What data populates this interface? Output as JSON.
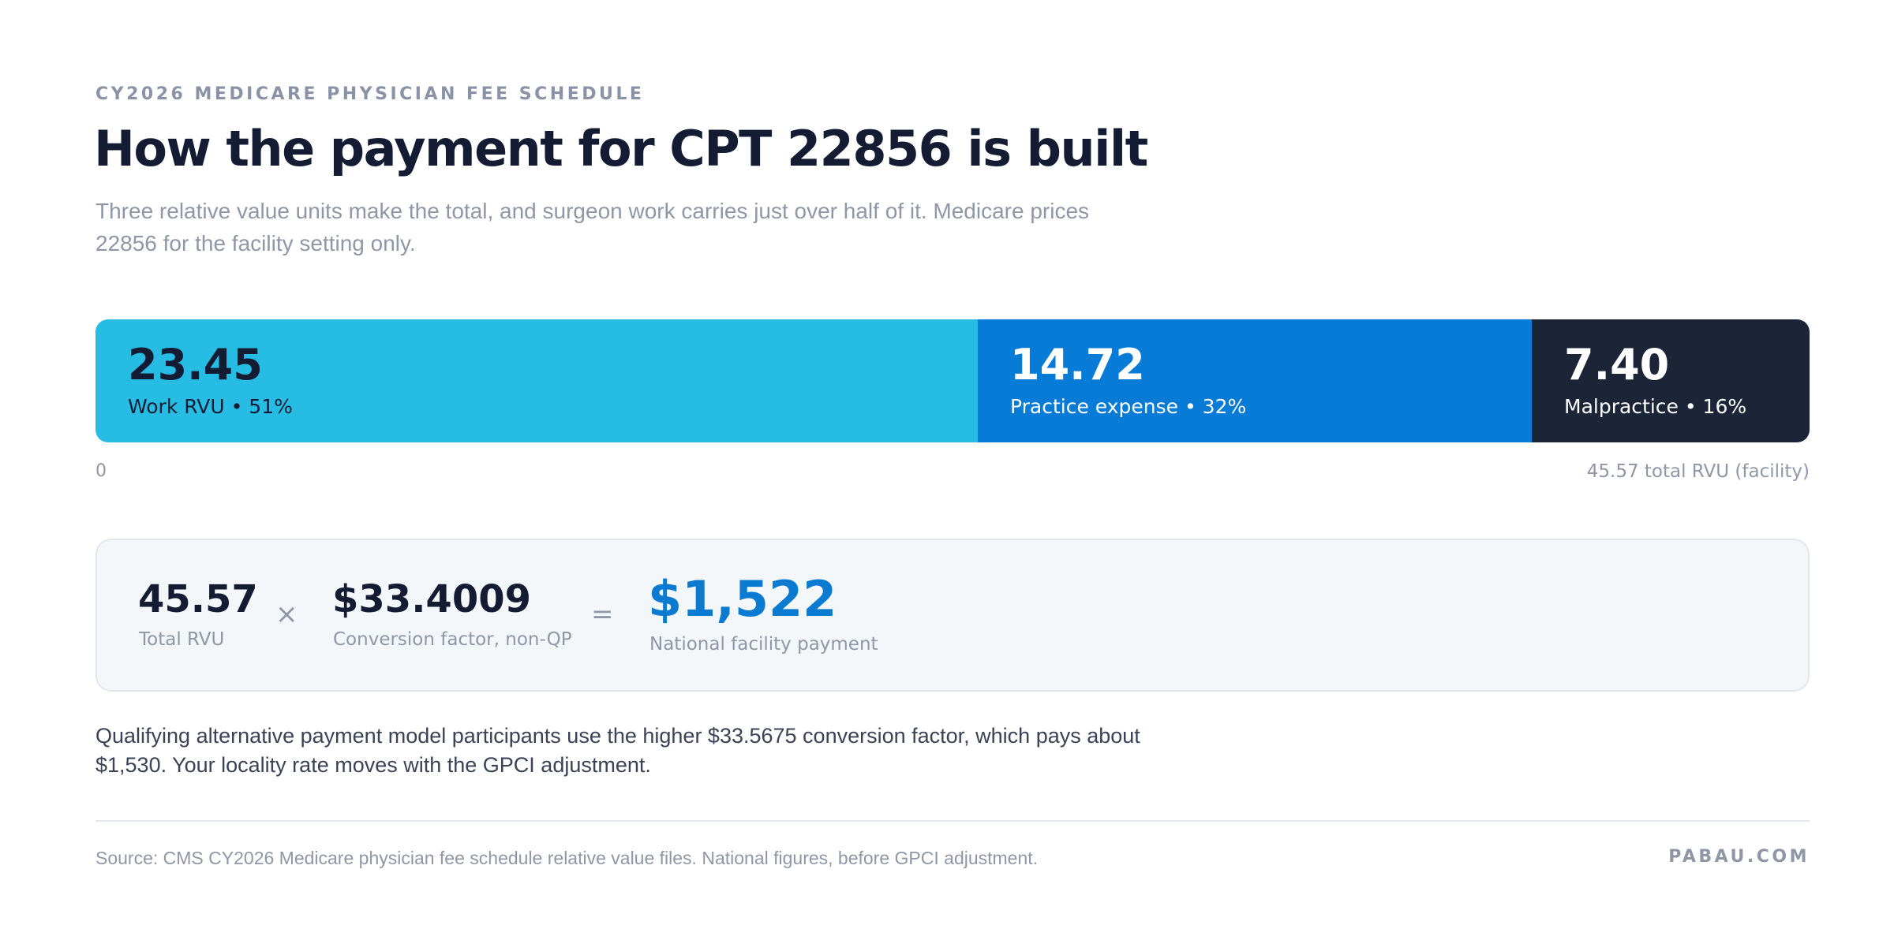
{
  "header": {
    "eyebrow": "CY2026 MEDICARE PHYSICIAN FEE SCHEDULE",
    "title": "How the payment for CPT 22856 is built",
    "subtitle": "Three relative value units make the total, and surgeon work carries just over half of it. Medicare prices 22856 for the facility setting only."
  },
  "chart_data": {
    "type": "bar",
    "orientation": "horizontal-stacked",
    "title": "How the payment for CPT 22856 is built",
    "categories": [
      "Work RVU",
      "Practice expense",
      "Malpractice"
    ],
    "values": [
      23.45,
      14.72,
      7.4
    ],
    "value_labels": [
      "23.45",
      "14.72",
      "7.40"
    ],
    "segment_labels": [
      "Work RVU • 51%",
      "Practice expense • 32%",
      "Malpractice • 16%"
    ],
    "percentages": [
      51,
      32,
      16
    ],
    "colors": [
      "#26bce3",
      "#077bd5",
      "#1c2538"
    ],
    "text_colors": [
      "#141c33",
      "#ffffff",
      "#ffffff"
    ],
    "xlim": [
      0,
      45.57
    ],
    "axis_min_label": "0",
    "axis_total_label": "45.57 total RVU (facility)",
    "grid": false
  },
  "calculation": {
    "total_rvu": {
      "value": "45.57",
      "caption": "Total RVU"
    },
    "multiply_symbol": "×",
    "conversion_factor": {
      "value": "$33.4009",
      "caption": "Conversion factor, non-QP"
    },
    "equals_symbol": "=",
    "payment": {
      "value": "$1,522",
      "caption": "National facility payment"
    },
    "accent_color": "#0a7bd0"
  },
  "note": "Qualifying alternative payment model participants use the higher $33.5675 conversion factor, which pays about $1,530. Your locality rate moves with the GPCI adjustment.",
  "footer": {
    "source": "Source: CMS CY2026 Medicare physician fee schedule relative value files. National figures, before GPCI adjustment.",
    "brand": "PABAU.COM"
  }
}
